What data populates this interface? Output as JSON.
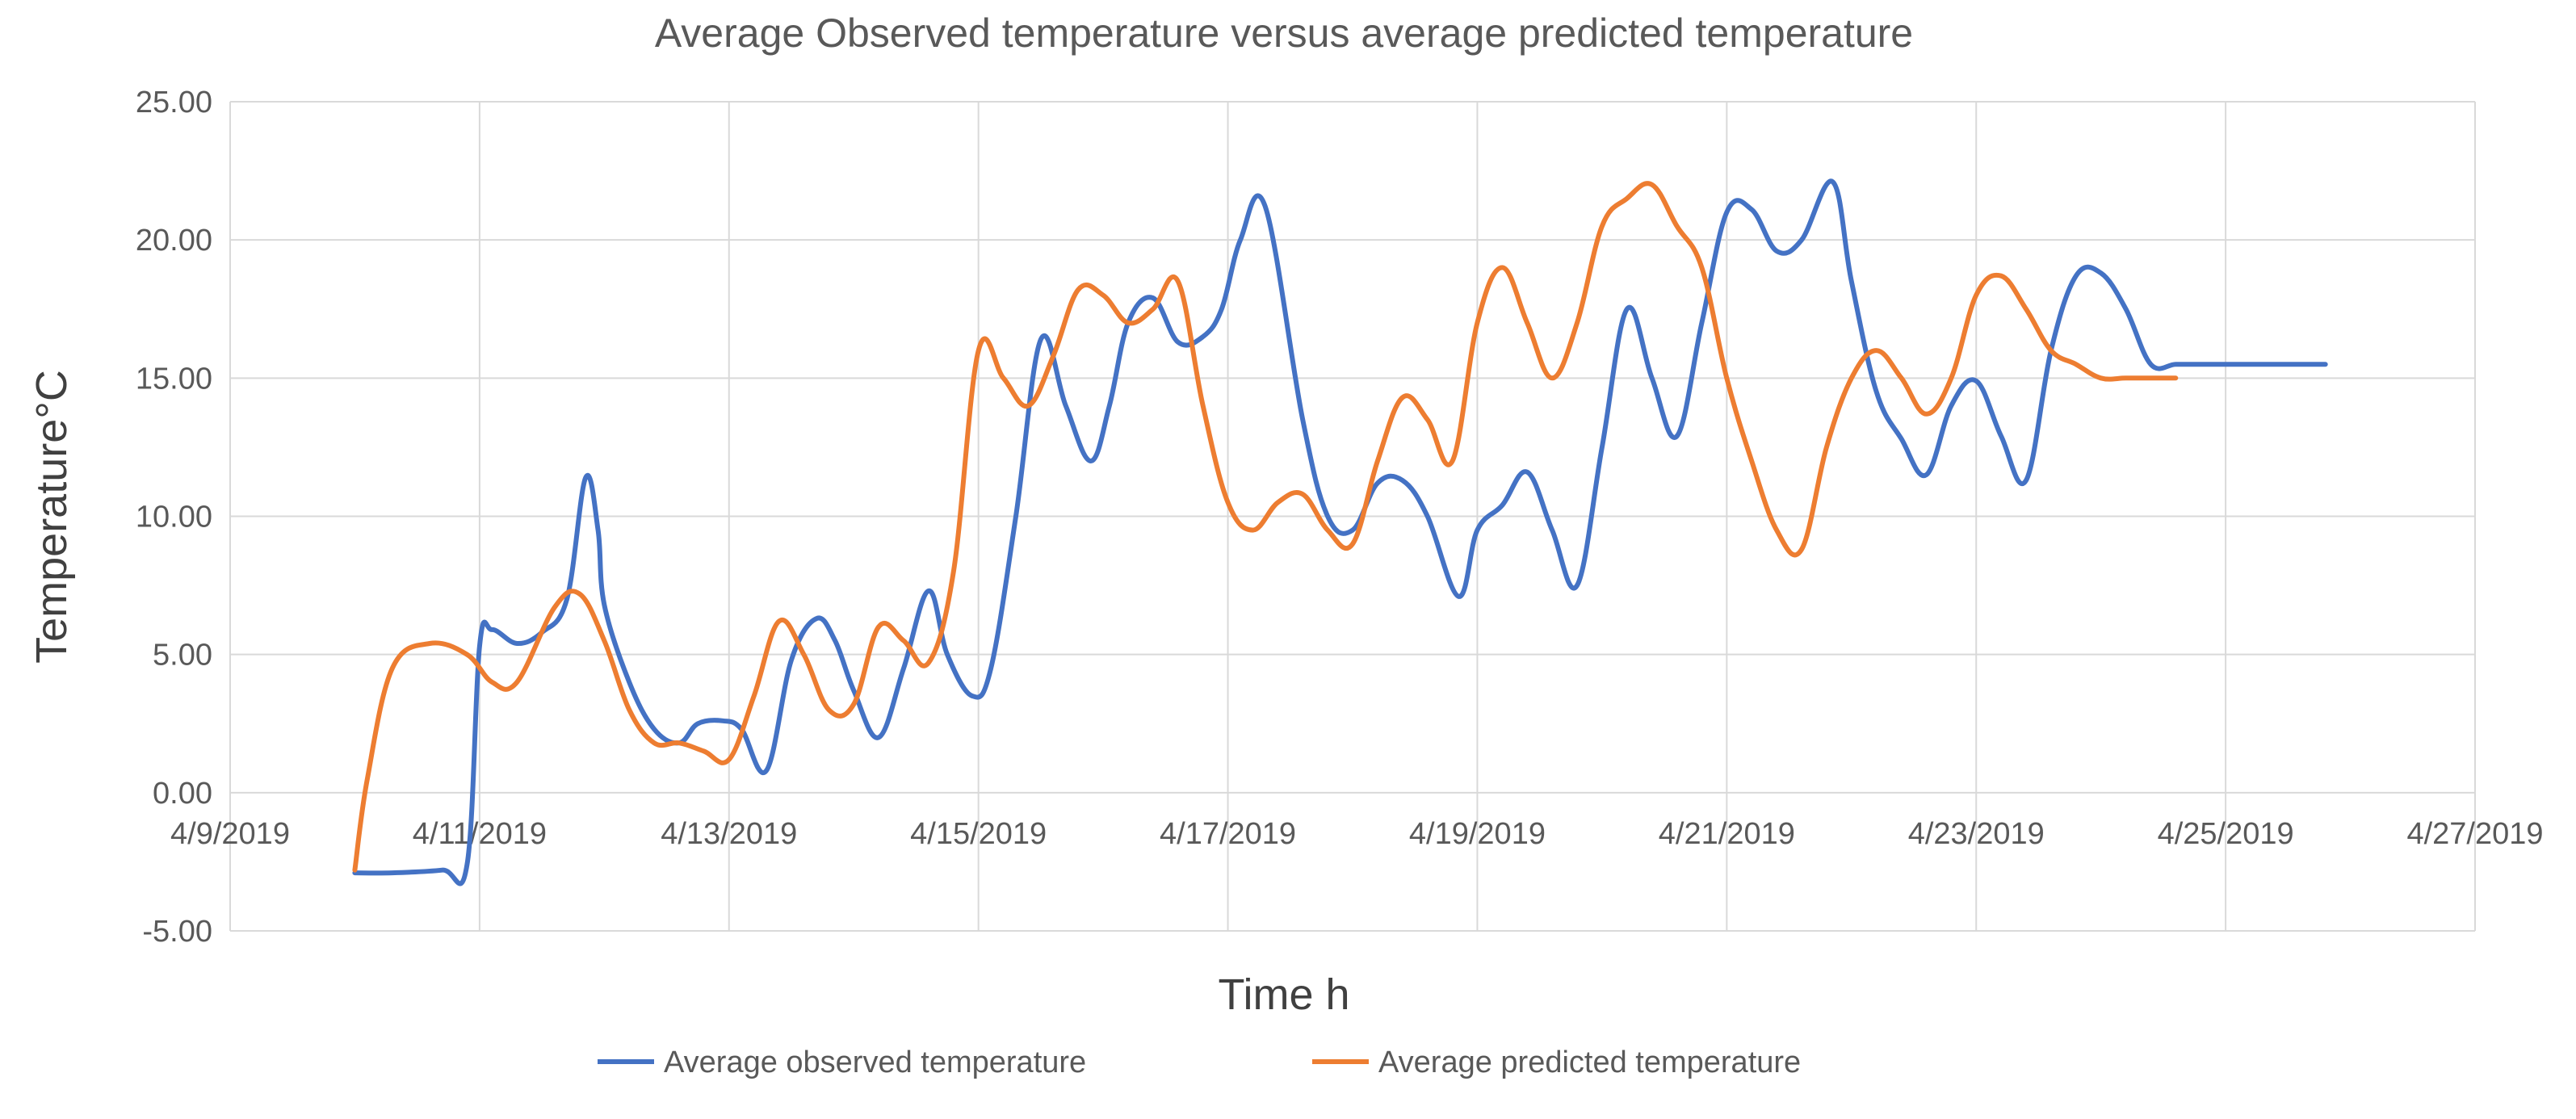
{
  "chart_data": {
    "type": "line",
    "title": "Average Observed temperature versus average predicted temperature",
    "xlabel": "Time h",
    "ylabel": "Temperature°C",
    "x_ticks": [
      "4/9/2019",
      "4/11/2019",
      "4/13/2019",
      "4/15/2019",
      "4/17/2019",
      "4/19/2019",
      "4/21/2019",
      "4/23/2019",
      "4/25/2019",
      "4/27/2019"
    ],
    "y_ticks": [
      "-5.00",
      "0.00",
      "5.00",
      "10.00",
      "15.00",
      "20.00",
      "25.00"
    ],
    "xlim_days": [
      0,
      18
    ],
    "ylim": [
      -5,
      25
    ],
    "grid": true,
    "legend_position": "bottom",
    "x_unit": "days since 4/9/2019",
    "series": [
      {
        "name": "Average observed temperature",
        "color": "#4472C4",
        "x": [
          1,
          1.3,
          1.7,
          1.9,
          2.0,
          2.1,
          2.3,
          2.5,
          2.7,
          2.85,
          2.95,
          3.0,
          3.2,
          3.4,
          3.6,
          3.75,
          3.95,
          4.1,
          4.3,
          4.5,
          4.7,
          4.85,
          5.0,
          5.2,
          5.4,
          5.6,
          5.75,
          5.95,
          6.1,
          6.3,
          6.5,
          6.7,
          6.9,
          7.05,
          7.2,
          7.4,
          7.6,
          7.8,
          7.95,
          8.1,
          8.3,
          8.6,
          8.8,
          9.0,
          9.2,
          9.4,
          9.6,
          9.85,
          10.0,
          10.2,
          10.4,
          10.6,
          10.8,
          11.0,
          11.2,
          11.4,
          11.6,
          11.8,
          12.0,
          12.2,
          12.4,
          12.6,
          12.85,
          13.0,
          13.2,
          13.4,
          13.6,
          13.8,
          14.0,
          14.2,
          14.4,
          14.6,
          14.8,
          15.0,
          15.2,
          15.4,
          15.6,
          15.8,
          16.0,
          16.2,
          16.4,
          16.6,
          16.8
        ],
        "values": [
          -2.9,
          -2.9,
          -2.8,
          -2.6,
          5.3,
          5.9,
          5.4,
          5.8,
          7.0,
          11.4,
          9.5,
          6.8,
          4.0,
          2.3,
          1.8,
          2.5,
          2.6,
          2.3,
          0.8,
          4.8,
          6.3,
          5.5,
          3.7,
          2.0,
          4.5,
          7.3,
          5.0,
          3.5,
          4.5,
          10.0,
          16.4,
          14.0,
          12.0,
          14.0,
          17.0,
          17.9,
          16.3,
          16.5,
          17.5,
          20.0,
          21.2,
          13.5,
          10.0,
          9.5,
          11.2,
          11.3,
          10.0,
          7.1,
          9.5,
          10.4,
          11.6,
          9.5,
          7.5,
          12.5,
          17.5,
          15.0,
          12.9,
          17.0,
          21.0,
          21.1,
          19.6,
          20.0,
          22.1,
          18.5,
          14.5,
          12.8,
          11.5,
          14.0,
          14.9,
          12.9,
          11.3,
          16.0,
          18.7,
          18.8,
          17.5,
          15.5,
          15.5,
          15.5,
          15.5,
          15.5,
          15.5,
          15.5,
          15.5
        ]
      },
      {
        "name": "Average predicted temperature",
        "color": "#ED7D31",
        "x": [
          1,
          1.1,
          1.3,
          1.6,
          1.9,
          2.1,
          2.3,
          2.6,
          2.8,
          3.0,
          3.2,
          3.4,
          3.6,
          3.8,
          4.0,
          4.2,
          4.4,
          4.6,
          4.8,
          5.0,
          5.2,
          5.4,
          5.6,
          5.8,
          6.0,
          6.2,
          6.4,
          6.6,
          6.8,
          7.0,
          7.2,
          7.4,
          7.6,
          7.8,
          8.0,
          8.2,
          8.4,
          8.6,
          8.8,
          9.0,
          9.2,
          9.4,
          9.6,
          9.8,
          10.0,
          10.2,
          10.4,
          10.6,
          10.8,
          11.0,
          11.2,
          11.4,
          11.6,
          11.8,
          12.0,
          12.2,
          12.4,
          12.6,
          12.8,
          13.0,
          13.2,
          13.4,
          13.6,
          13.8,
          14.0,
          14.2,
          14.4,
          14.6,
          14.8,
          15.0,
          15.2,
          15.4,
          15.6
        ],
        "values": [
          -2.8,
          0.5,
          4.5,
          5.4,
          5.0,
          4.0,
          4.0,
          6.7,
          7.2,
          5.5,
          3.0,
          1.8,
          1.8,
          1.5,
          1.2,
          3.5,
          6.2,
          5.0,
          3.0,
          3.2,
          6.0,
          5.5,
          4.7,
          8.0,
          16.0,
          15.0,
          14.0,
          15.8,
          18.2,
          18.0,
          17.0,
          17.5,
          18.5,
          14.0,
          10.5,
          9.5,
          10.5,
          10.8,
          9.5,
          9.0,
          12.0,
          14.3,
          13.5,
          12.0,
          17.0,
          19.0,
          17.0,
          15.0,
          17.0,
          20.5,
          21.5,
          22.0,
          20.5,
          19.0,
          15.0,
          12.0,
          9.5,
          8.8,
          12.5,
          15.0,
          16.0,
          15.0,
          13.7,
          15.0,
          18.0,
          18.7,
          17.5,
          16.0,
          15.5,
          15.0,
          15.0,
          15.0,
          15.0
        ]
      }
    ]
  }
}
